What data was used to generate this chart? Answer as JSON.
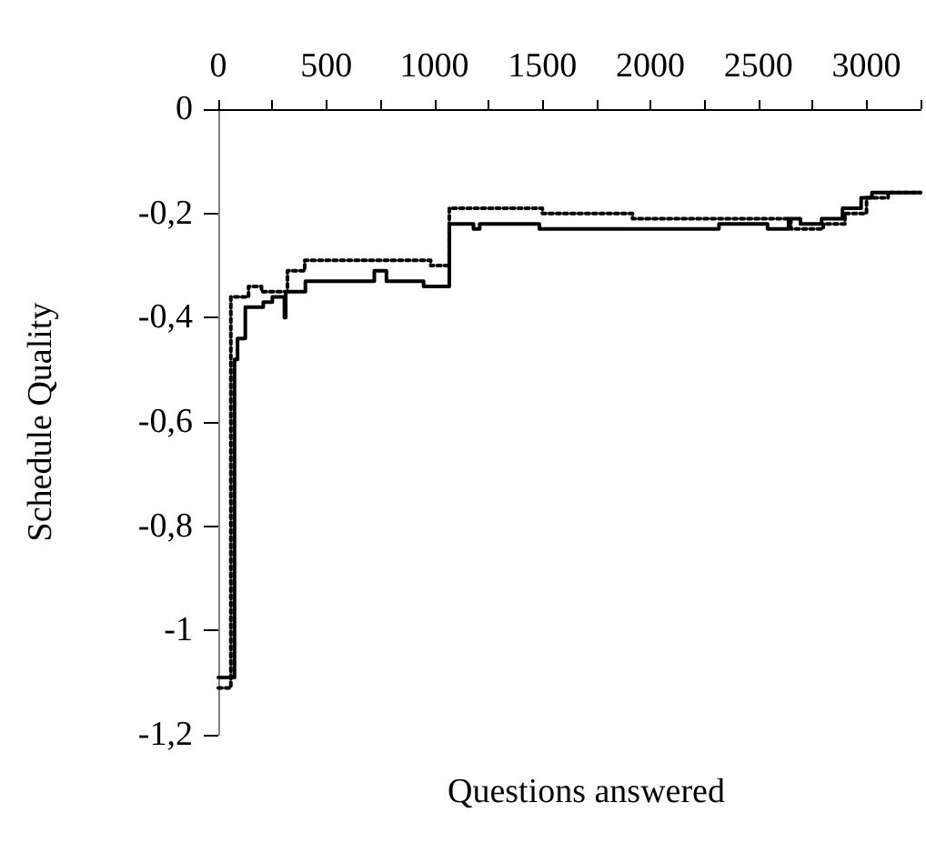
{
  "chart_data": {
    "type": "step",
    "xlabel": "Questions answered",
    "ylabel": "Schedule Quality",
    "xlim": [
      0,
      3250
    ],
    "xticks": [
      0,
      {
        "value": 250,
        "label": null
      },
      500,
      {
        "value": 750,
        "label": null
      },
      1000,
      {
        "value": 1250,
        "label": null
      },
      1500,
      {
        "value": 1750,
        "label": null
      },
      2000,
      {
        "value": 2250,
        "label": null
      },
      2500,
      {
        "value": 2750,
        "label": null
      },
      3000,
      {
        "value": 3250,
        "label": null
      }
    ],
    "ylim": [
      -1.2,
      0
    ],
    "yticks": [
      0,
      {
        "value": -0.2,
        "label": "-0,2"
      },
      {
        "value": -0.4,
        "label": "-0,4"
      },
      {
        "value": -0.6,
        "label": "-0,6"
      },
      {
        "value": -0.8,
        "label": "-0,8"
      },
      -1,
      {
        "value": -1.2,
        "label": "-1,2"
      }
    ],
    "grid": false,
    "marker": "none",
    "series": [
      {
        "color": "#000000",
        "line_style": "solid",
        "x": [
          0,
          75,
          89,
          125,
          208,
          250,
          306,
          312,
          403,
          722,
          778,
          950,
          1069,
          1181,
          1210,
          1486,
          2317,
          2542,
          2639,
          2694,
          2750,
          2792,
          2889,
          2975,
          3025,
          3250
        ],
        "values": [
          -1.09,
          -0.48,
          -0.44,
          -0.38,
          -0.37,
          -0.36,
          -0.4,
          -0.35,
          -0.33,
          -0.31,
          -0.33,
          -0.34,
          -0.22,
          -0.23,
          -0.22,
          -0.23,
          -0.22,
          -0.23,
          -0.21,
          -0.22,
          -0.22,
          -0.21,
          -0.19,
          -0.17,
          -0.16,
          -0.16
        ]
      },
      {
        "color": "#000000",
        "line_style": "dotted",
        "x": [
          0,
          58,
          140,
          200,
          320,
          400,
          983,
          1069,
          1500,
          1917,
          2650,
          2800,
          2900,
          3000,
          3100,
          3250
        ],
        "values": [
          -1.11,
          -0.36,
          -0.34,
          -0.35,
          -0.31,
          -0.29,
          -0.3,
          -0.19,
          -0.2,
          -0.21,
          -0.23,
          -0.22,
          -0.2,
          -0.17,
          -0.16,
          -0.16
        ]
      }
    ]
  }
}
